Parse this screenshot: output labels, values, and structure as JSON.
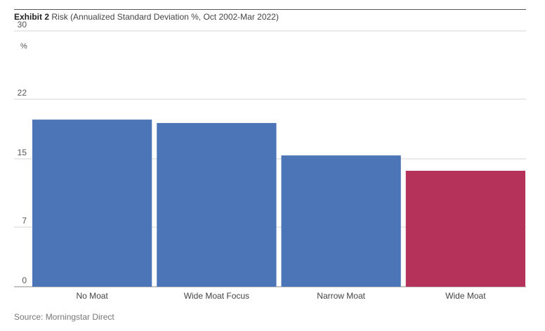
{
  "header": {
    "exhibit": "Exhibit 2",
    "title": "Risk (Annualized Standard Deviation %, Oct 2002-Mar 2022)"
  },
  "axis": {
    "unit": "%"
  },
  "footer": {
    "source": "Source: Morningstar Direct"
  },
  "colors": {
    "blue": "#4b75b6",
    "red": "#b5335a"
  },
  "chart_data": {
    "type": "bar",
    "title": "Risk (Annualized Standard Deviation %, Oct 2002-Mar 2022)",
    "categories": [
      "No Moat",
      "Wide Moat Focus",
      "Narrow Moat",
      "Wide Moat"
    ],
    "values": [
      19.6,
      19.2,
      15.4,
      13.6
    ],
    "bar_colors": [
      "#4b75b6",
      "#4b75b6",
      "#4b75b6",
      "#b5335a"
    ],
    "yticks": [
      0,
      7,
      15,
      22,
      30
    ],
    "ylim": [
      0,
      30
    ],
    "ylabel": "%",
    "xlabel": "",
    "grid": true,
    "legend": "none"
  }
}
